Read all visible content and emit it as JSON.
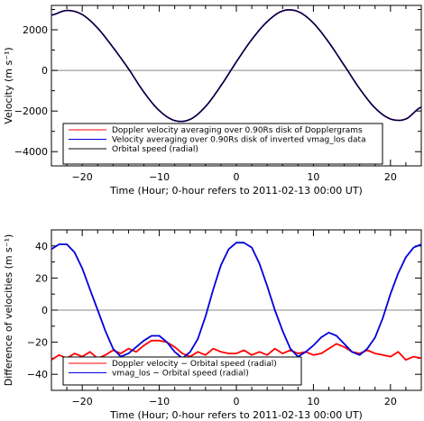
{
  "colors": {
    "red": "#ff0000",
    "blue": "#0000dd",
    "black": "#000000",
    "gray": "#888888"
  },
  "chart_data": [
    {
      "type": "line",
      "xlabel": "Time (Hour; 0-hour refers to 2011-02-13 00:00 UT)",
      "ylabel": "Velocity (m s⁻¹)",
      "xlim": [
        -24,
        24
      ],
      "ylim": [
        -4700,
        3200
      ],
      "xticks": [
        -20,
        -10,
        0,
        10,
        20
      ],
      "xtick_labels": [
        "−20",
        "−10",
        "0",
        "10",
        "20"
      ],
      "yticks": [
        -4000,
        -2000,
        0,
        2000
      ],
      "ytick_labels": [
        "−4000",
        "−2000",
        "0",
        "2000"
      ],
      "zero_line": true,
      "legend_position": "bottom-left",
      "x": [
        -24,
        -22,
        -20,
        -18,
        -16,
        -14,
        -12,
        -10,
        -8,
        -6,
        -4,
        -2,
        0,
        2,
        4,
        6,
        8,
        10,
        12,
        14,
        16,
        18,
        20,
        22,
        24
      ],
      "series": [
        {
          "name": "Doppler velocity averaging over 0.90Rs disk of Dopplergrams",
          "color": "#ff0000",
          "values": [
            2720,
            2950,
            2750,
            2080,
            1130,
            80,
            -1070,
            -1980,
            -2470,
            -2410,
            -1780,
            -750,
            420,
            1520,
            2400,
            2930,
            2900,
            2330,
            1380,
            250,
            -900,
            -1850,
            -2390,
            -2390,
            -1800
          ]
        },
        {
          "name": "Velocity averaging over 0.90Rs disk of inverted vmag_los data",
          "color": "#0000dd",
          "values": [
            2720,
            2950,
            2750,
            2080,
            1130,
            80,
            -1070,
            -1980,
            -2470,
            -2410,
            -1780,
            -750,
            420,
            1520,
            2400,
            2930,
            2900,
            2330,
            1380,
            250,
            -900,
            -1850,
            -2390,
            -2390,
            -1800
          ]
        },
        {
          "name": "Orbital speed (radial)",
          "color": "#000000",
          "values": [
            2720,
            2950,
            2750,
            2080,
            1130,
            80,
            -1070,
            -1980,
            -2470,
            -2410,
            -1780,
            -750,
            420,
            1520,
            2400,
            2930,
            2900,
            2330,
            1380,
            250,
            -900,
            -1850,
            -2390,
            -2390,
            -1800
          ]
        }
      ]
    },
    {
      "type": "line",
      "xlabel": "Time (Hour; 0-hour refers to 2011-02-13 00:00 UT)",
      "ylabel": "Difference of velocities (m s⁻¹)",
      "xlim": [
        -24,
        24
      ],
      "ylim": [
        -50,
        50
      ],
      "xticks": [
        -20,
        -10,
        0,
        10,
        20
      ],
      "xtick_labels": [
        "−20",
        "−10",
        "0",
        "10",
        "20"
      ],
      "yticks": [
        -40,
        -20,
        0,
        20,
        40
      ],
      "ytick_labels": [
        "−40",
        "−20",
        "0",
        "20",
        "40"
      ],
      "zero_line": true,
      "legend_position": "bottom-left",
      "series": [
        {
          "name": "Doppler velocity − Orbital speed (radial)",
          "color": "#ff0000",
          "x": [
            -24,
            -23,
            -22,
            -21,
            -20,
            -19,
            -18,
            -17,
            -16,
            -15,
            -14,
            -13,
            -12,
            -11,
            -10,
            -9,
            -8,
            -7,
            -6,
            -5,
            -4,
            -3,
            -2,
            -1,
            0,
            1,
            2,
            3,
            4,
            5,
            6,
            7,
            8,
            9,
            10,
            11,
            12,
            13,
            14,
            15,
            16,
            17,
            18,
            19,
            20,
            21,
            22,
            23,
            24
          ],
          "values": [
            -31,
            -28,
            -30,
            -27,
            -29,
            -26,
            -30,
            -28,
            -25,
            -27,
            -24,
            -26,
            -22,
            -19,
            -19,
            -20,
            -23,
            -27,
            -29,
            -26,
            -28,
            -24,
            -26,
            -27,
            -27,
            -25,
            -28,
            -26,
            -28,
            -24,
            -27,
            -25,
            -27,
            -26,
            -28,
            -27,
            -24,
            -21,
            -23,
            -26,
            -27,
            -25,
            -27,
            -28,
            -29,
            -26,
            -31,
            -29,
            -30
          ]
        },
        {
          "name": "vmag_los − Orbital speed (radial)",
          "color": "#0000dd",
          "x": [
            -24,
            -23,
            -22,
            -21,
            -20,
            -19,
            -18,
            -17,
            -16,
            -15,
            -14,
            -13,
            -12,
            -11,
            -10,
            -9,
            -8,
            -7,
            -6,
            -5,
            -4,
            -3,
            -2,
            -1,
            0,
            1,
            2,
            3,
            4,
            5,
            6,
            7,
            8,
            9,
            10,
            11,
            12,
            13,
            14,
            15,
            16,
            17,
            18,
            19,
            20,
            21,
            22,
            23,
            24
          ],
          "values": [
            38,
            41,
            41,
            36,
            26,
            13,
            0,
            -13,
            -24,
            -29,
            -27,
            -23,
            -19,
            -16,
            -16,
            -20,
            -26,
            -30,
            -26,
            -18,
            -4,
            13,
            28,
            38,
            42,
            42,
            39,
            29,
            15,
            0,
            -13,
            -24,
            -29,
            -26,
            -22,
            -17,
            -14,
            -16,
            -21,
            -26,
            -28,
            -24,
            -17,
            -5,
            10,
            23,
            33,
            39,
            41
          ]
        }
      ]
    }
  ]
}
